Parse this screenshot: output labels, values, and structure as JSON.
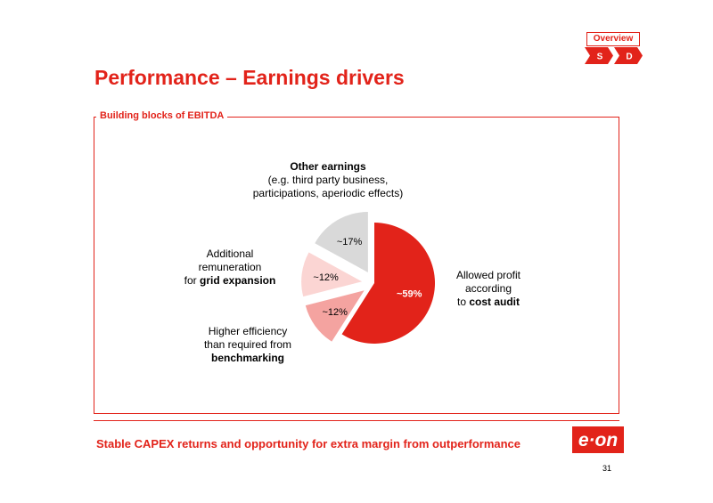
{
  "nav": {
    "overview": "Overview",
    "steps": [
      "S",
      "D"
    ],
    "accent": "#e2231a"
  },
  "title": "Performance – Earnings drivers",
  "section_label": "Building blocks of EBITDA",
  "labels": {
    "other": {
      "heading": "Other earnings",
      "line1": "(e.g. third party business,",
      "line2": "participations, aperiodic effects)"
    },
    "additional": {
      "line1": "Additional",
      "line2": "remuneration",
      "line3_prefix": "for ",
      "line3_bold": "grid expansion"
    },
    "efficiency": {
      "line1": "Higher efficiency",
      "line2": "than required from",
      "line3_bold": "benchmarking"
    },
    "allowed": {
      "line1": "Allowed profit",
      "line2": "according",
      "line3_prefix": "to ",
      "line3_bold": "cost audit"
    }
  },
  "chart_data": {
    "type": "pie",
    "title": "",
    "slices": [
      {
        "key": "allowed",
        "value": 59,
        "label": "~59%",
        "color": "#e2231a",
        "label_color": "#ffffff",
        "exploded": false
      },
      {
        "key": "efficiency",
        "value": 12,
        "label": "~12%",
        "color": "#f4a3a0",
        "label_color": "#000000",
        "exploded": true
      },
      {
        "key": "additional",
        "value": 12,
        "label": "~12%",
        "color": "#fbd5d3",
        "label_color": "#000000",
        "exploded": true
      },
      {
        "key": "other",
        "value": 17,
        "label": "~17%",
        "color": "#d9d9d9",
        "label_color": "#000000",
        "exploded": true
      }
    ]
  },
  "bottom_text": "Stable CAPEX returns and opportunity for extra margin from outperformance",
  "logo_text": "e·on",
  "page_number": "31"
}
